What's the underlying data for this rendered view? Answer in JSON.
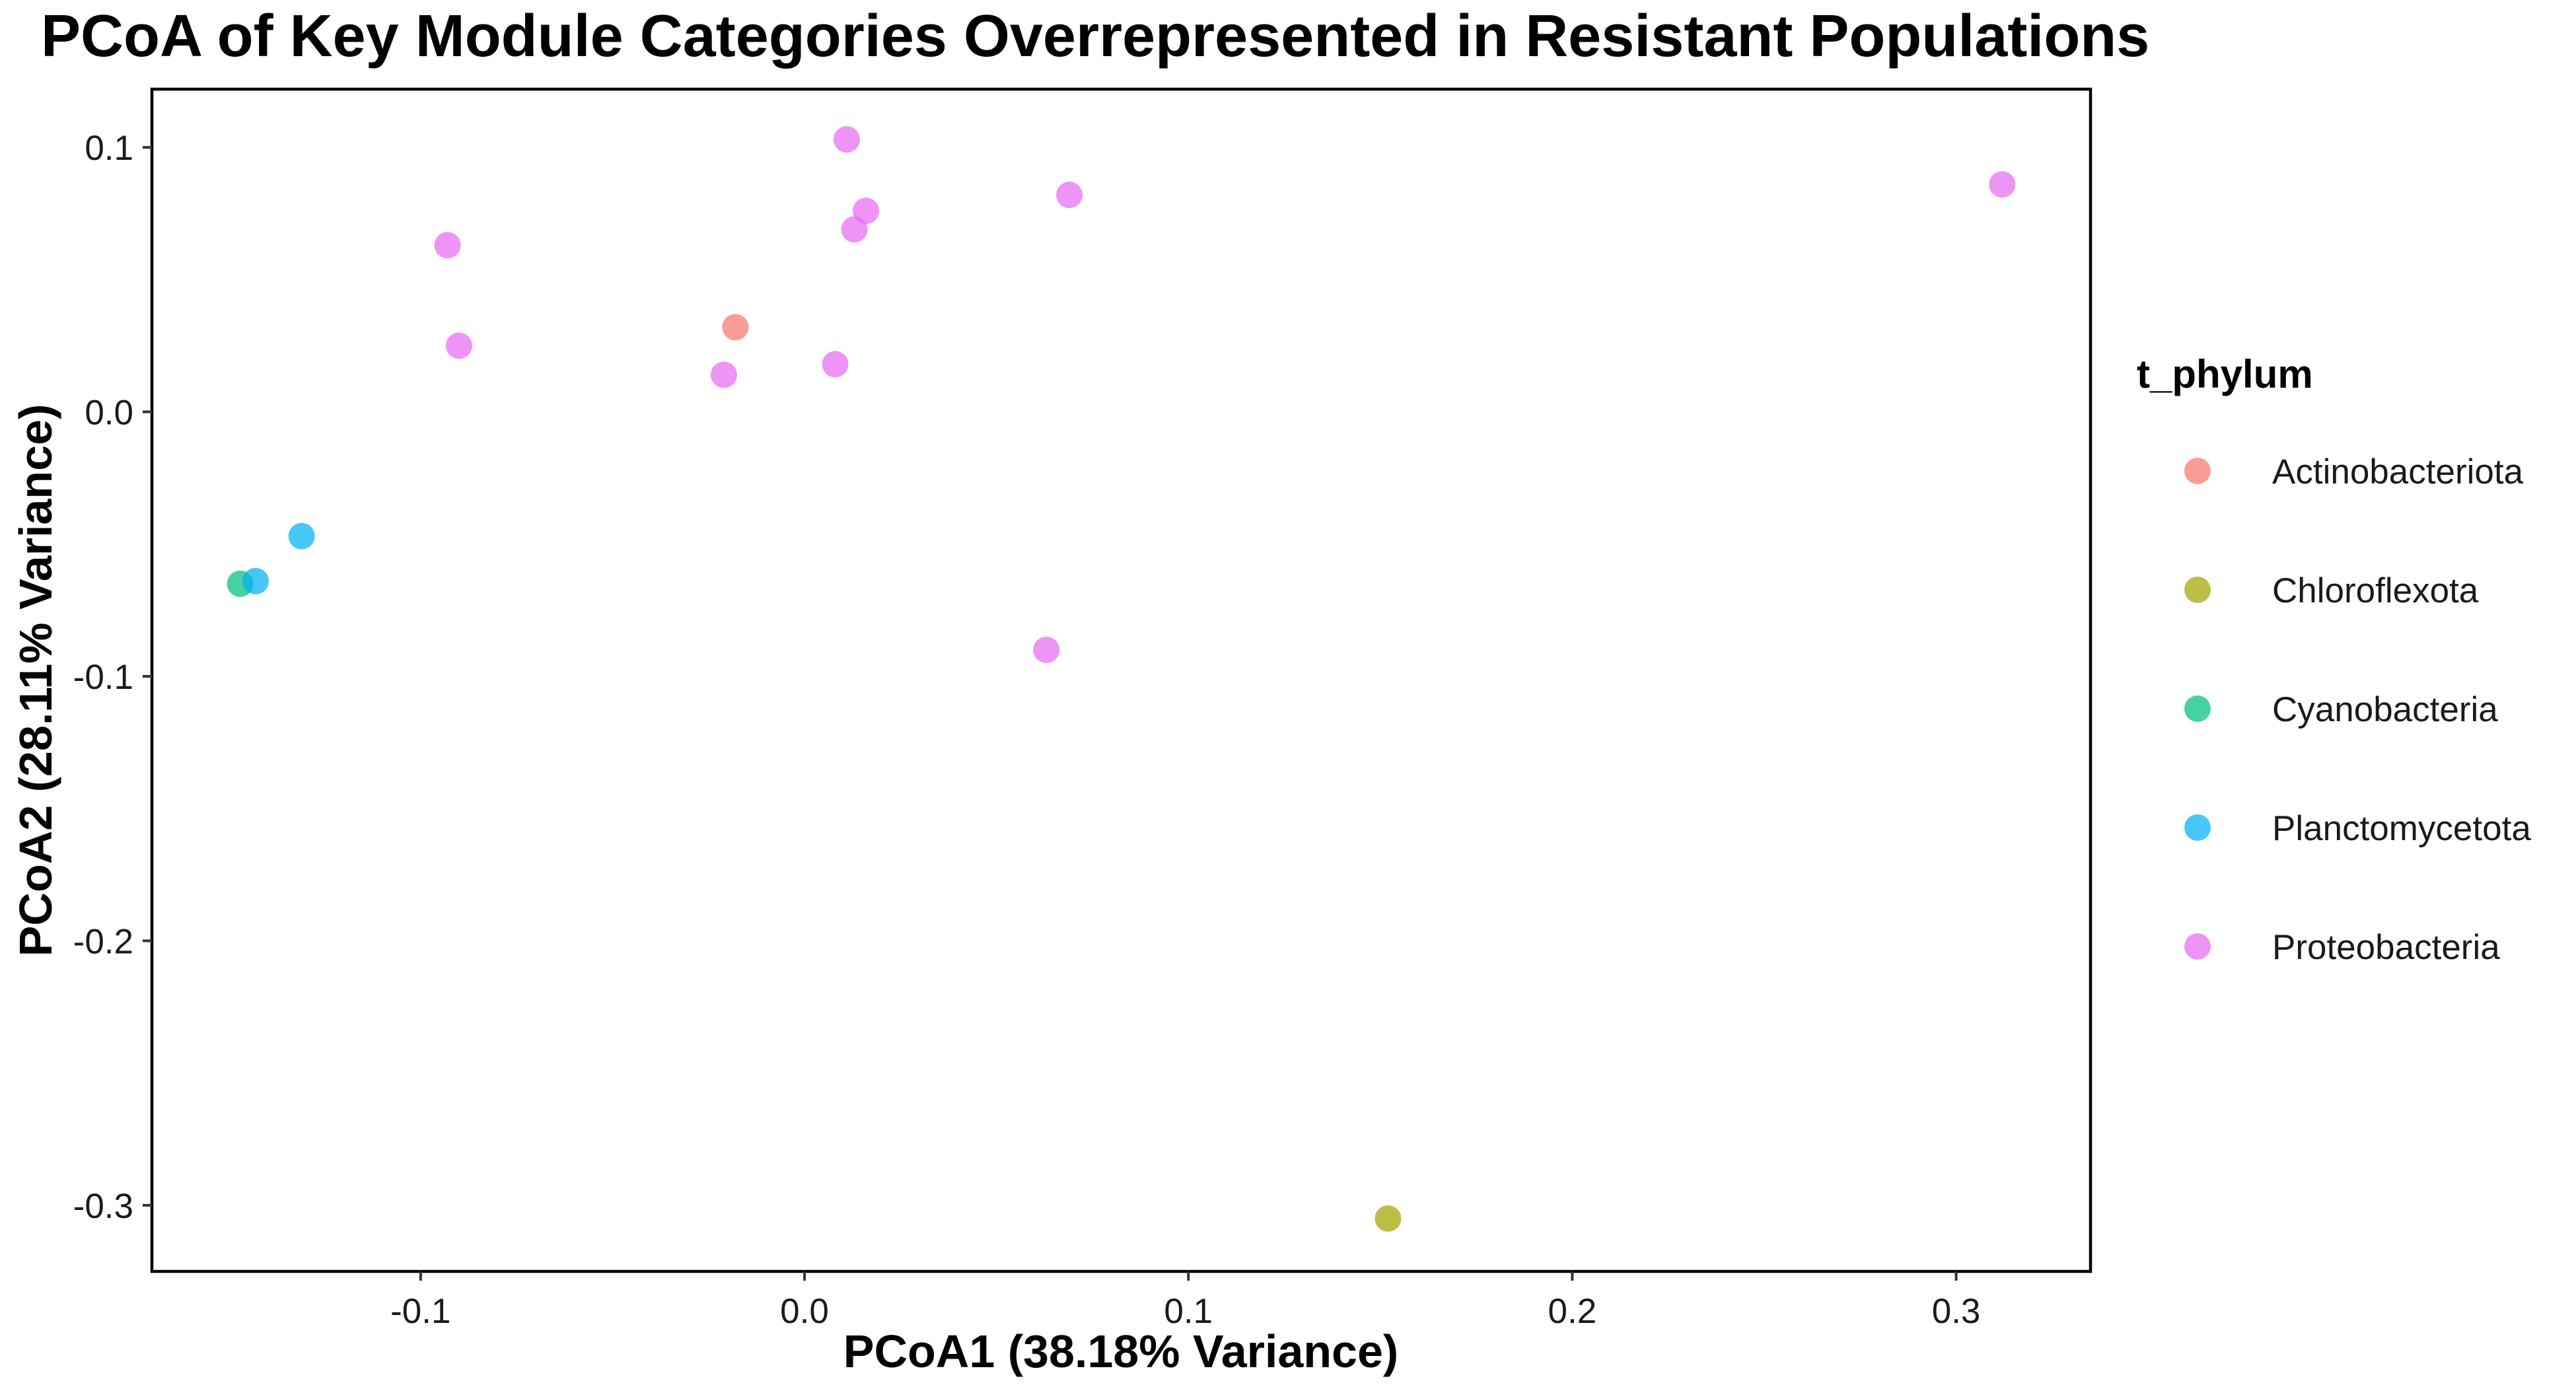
{
  "chart_data": {
    "type": "scatter",
    "title": "PCoA of Key Module Categories Overrepresented in Resistant Populations",
    "xlabel": "PCoA1 (38.18% Variance)",
    "ylabel": "PCoA2 (28.11% Variance)",
    "xlim": [
      -0.17,
      0.335
    ],
    "ylim": [
      -0.325,
      0.122
    ],
    "x_ticks": [
      -0.1,
      0.0,
      0.1,
      0.2,
      0.3
    ],
    "x_tick_labels": [
      "-0.1",
      "0.0",
      "0.1",
      "0.2",
      "0.3"
    ],
    "y_ticks": [
      0.1,
      0.0,
      -0.1,
      -0.2,
      -0.3
    ],
    "y_tick_labels": [
      "0.1",
      "0.0",
      "-0.1",
      "-0.2",
      "-0.3"
    ],
    "grid": false,
    "legend": {
      "title": "t_phylum",
      "placement": "right"
    },
    "series": [
      {
        "name": "Actinobacteriota",
        "color": "#F8766D",
        "points": [
          {
            "x": -0.018,
            "y": 0.032
          }
        ]
      },
      {
        "name": "Chloroflexota",
        "color": "#A3A500",
        "points": [
          {
            "x": 0.152,
            "y": -0.305
          }
        ]
      },
      {
        "name": "Cyanobacteria",
        "color": "#00BF7D",
        "points": [
          {
            "x": -0.147,
            "y": -0.065
          }
        ]
      },
      {
        "name": "Planctomycetota",
        "color": "#00B0F6",
        "points": [
          {
            "x": -0.143,
            "y": -0.064
          },
          {
            "x": -0.131,
            "y": -0.047
          }
        ]
      },
      {
        "name": "Proteobacteria",
        "color": "#E76BF3",
        "points": [
          {
            "x": 0.011,
            "y": 0.103
          },
          {
            "x": 0.016,
            "y": 0.076
          },
          {
            "x": 0.013,
            "y": 0.069
          },
          {
            "x": 0.069,
            "y": 0.082
          },
          {
            "x": 0.312,
            "y": 0.086
          },
          {
            "x": -0.093,
            "y": 0.063
          },
          {
            "x": -0.09,
            "y": 0.025
          },
          {
            "x": -0.021,
            "y": 0.014
          },
          {
            "x": 0.008,
            "y": 0.018
          },
          {
            "x": 0.063,
            "y": -0.09
          }
        ]
      }
    ]
  }
}
